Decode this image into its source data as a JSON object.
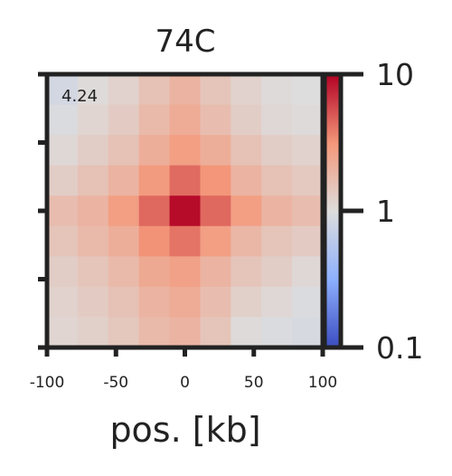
{
  "chart_data": {
    "type": "heatmap",
    "title": "74C",
    "xlabel": "pos. [kb]",
    "ylabel": "",
    "x_ticks": [
      "-100",
      "-50",
      "0",
      "50",
      "100"
    ],
    "xlim": [
      -100,
      100
    ],
    "ylim": [
      -100,
      100
    ],
    "annotation": "4.24",
    "colorbar": {
      "scale": "log",
      "min": 0.1,
      "max": 10,
      "tick_labels": [
        "10",
        "1",
        "0.1"
      ],
      "tick_values": [
        10,
        1,
        0.1
      ],
      "colormap": "coolwarm"
    },
    "grid": false,
    "rows": 9,
    "cols": 9,
    "values": [
      [
        0.85,
        1.05,
        1.2,
        1.6,
        2.0,
        1.5,
        1.2,
        1.05,
        1.0
      ],
      [
        0.95,
        1.15,
        1.35,
        1.8,
        2.3,
        1.7,
        1.3,
        1.1,
        1.05
      ],
      [
        1.1,
        1.3,
        1.6,
        2.2,
        2.8,
        2.2,
        1.6,
        1.3,
        1.2
      ],
      [
        1.3,
        1.6,
        2.0,
        3.0,
        4.5,
        3.2,
        2.0,
        1.6,
        1.4
      ],
      [
        1.7,
        2.0,
        2.8,
        4.6,
        9.5,
        4.6,
        2.8,
        2.0,
        1.7
      ],
      [
        1.5,
        1.8,
        2.2,
        3.3,
        4.2,
        2.8,
        1.9,
        1.5,
        1.35
      ],
      [
        1.3,
        1.5,
        1.8,
        2.4,
        2.7,
        2.0,
        1.5,
        1.3,
        1.1
      ],
      [
        1.2,
        1.35,
        1.6,
        2.0,
        2.3,
        1.7,
        1.25,
        1.1,
        0.95
      ],
      [
        1.15,
        1.25,
        1.45,
        1.8,
        2.0,
        1.5,
        1.05,
        0.95,
        0.9
      ]
    ]
  }
}
